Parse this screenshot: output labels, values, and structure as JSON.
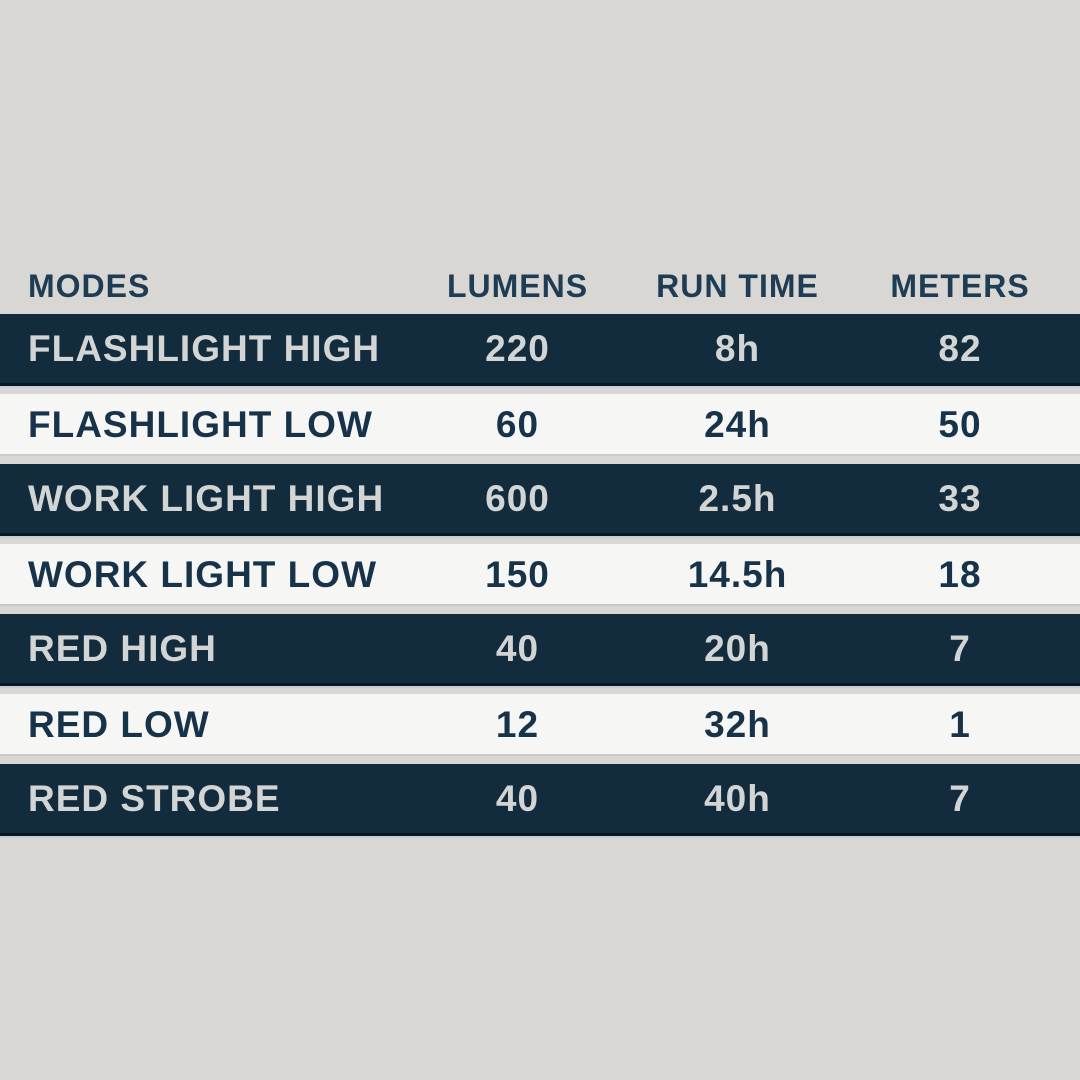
{
  "colors": {
    "page_background": "#d8d7d4",
    "dark_row_background": "#122c3e",
    "dark_row_border": "#081723",
    "dark_row_text": "#d3d5d4",
    "light_row_background": "#f6f6f5",
    "light_row_border": "#cacbc8",
    "light_row_text": "#17334a",
    "header_text": "#1e3c54"
  },
  "table": {
    "headers": [
      "MODES",
      "LUMENS",
      "RUN TIME",
      "METERS"
    ],
    "rows": [
      {
        "mode": "FLASHLIGHT HIGH",
        "lumens": "220",
        "run_time": "8h",
        "meters": "82",
        "variant": "dark"
      },
      {
        "mode": "FLASHLIGHT LOW",
        "lumens": "60",
        "run_time": "24h",
        "meters": "50",
        "variant": "light"
      },
      {
        "mode": "WORK LIGHT HIGH",
        "lumens": "600",
        "run_time": "2.5h",
        "meters": "33",
        "variant": "dark"
      },
      {
        "mode": "WORK LIGHT LOW",
        "lumens": "150",
        "run_time": "14.5h",
        "meters": "18",
        "variant": "light"
      },
      {
        "mode": "RED HIGH",
        "lumens": "40",
        "run_time": "20h",
        "meters": "7",
        "variant": "dark"
      },
      {
        "mode": "RED LOW",
        "lumens": "12",
        "run_time": "32h",
        "meters": "1",
        "variant": "light"
      },
      {
        "mode": "RED STROBE",
        "lumens": "40",
        "run_time": "40h",
        "meters": "7",
        "variant": "dark"
      }
    ]
  },
  "chart_data": {
    "type": "table",
    "title": "",
    "columns": [
      "MODES",
      "LUMENS",
      "RUN TIME",
      "METERS"
    ],
    "rows": [
      [
        "FLASHLIGHT HIGH",
        220,
        "8h",
        82
      ],
      [
        "FLASHLIGHT LOW",
        60,
        "24h",
        50
      ],
      [
        "WORK LIGHT HIGH",
        600,
        "2.5h",
        33
      ],
      [
        "WORK LIGHT LOW",
        150,
        "14.5h",
        18
      ],
      [
        "RED HIGH",
        40,
        "20h",
        7
      ],
      [
        "RED LOW",
        12,
        "32h",
        1
      ],
      [
        "RED STROBE",
        40,
        "40h",
        7
      ]
    ],
    "layout_hints": {
      "row_striping": [
        "dark",
        "light",
        "dark",
        "light",
        "dark",
        "light",
        "dark"
      ],
      "first_column_align": "left",
      "value_columns_align": "center"
    }
  }
}
